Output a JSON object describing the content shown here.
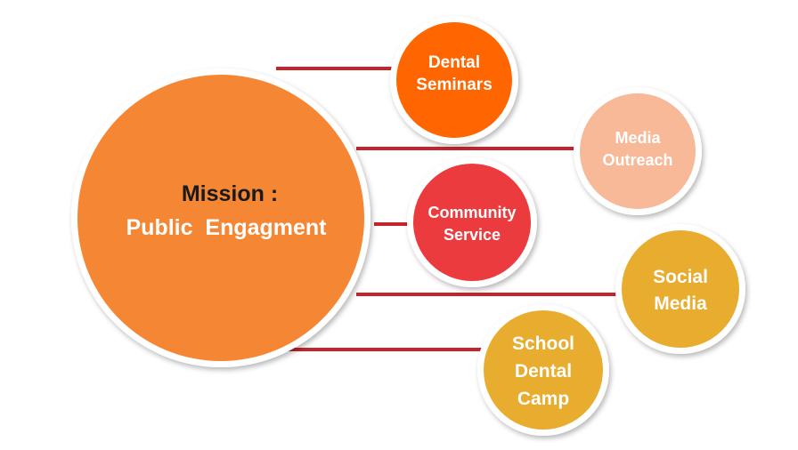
{
  "center": {
    "title_line1": "Mission :",
    "title_line2": "Public  Engagment",
    "fill": "#F58634",
    "title1_color": "#1a1a1a",
    "title2_color": "#ffffff"
  },
  "connector_color": "#C4242B",
  "nodes": [
    {
      "id": "dental-seminars",
      "lines": [
        "Dental",
        "Seminars"
      ],
      "fill": "#FF6600"
    },
    {
      "id": "media-outreach",
      "lines": [
        "Media",
        "Outreach"
      ],
      "fill": "#F7B998"
    },
    {
      "id": "community-service",
      "lines": [
        "Community",
        "Service"
      ],
      "fill": "#EC3B3F"
    },
    {
      "id": "social-media",
      "lines": [
        "Social",
        "Media"
      ],
      "fill": "#E8AC2E"
    },
    {
      "id": "school-dental-camp",
      "lines": [
        "School",
        "Dental",
        "Camp"
      ],
      "fill": "#E8AC2E"
    }
  ]
}
